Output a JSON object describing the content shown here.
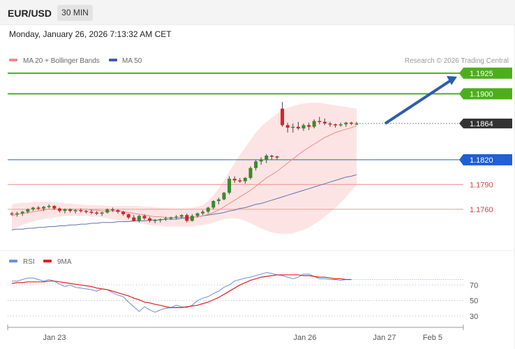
{
  "header": {
    "symbol": "EUR/USD",
    "timeframe": "30 MIN"
  },
  "datetime": "Monday, January 26, 2026 7:13:32 AM CET",
  "legend": {
    "ma20": "MA 20 + Bollinger Bands",
    "ma50": "MA 50",
    "ma20_color": "#f08a8a",
    "ma50_color": "#3a5fa8"
  },
  "credit": "Research © 2026 Trading Central",
  "rsi_legend": {
    "rsi": "RSI",
    "ma9": "9MA",
    "rsi_color": "#6a8fe0",
    "ma9_color": "#e02020"
  },
  "chart_data": [
    {
      "type": "candlestick",
      "ylim": [
        1.1715,
        1.1935
      ],
      "levels": [
        {
          "value": 1.1925,
          "label": "1.1925",
          "kind": "target",
          "color": "#4caf1a"
        },
        {
          "value": 1.19,
          "label": "1.1900",
          "kind": "target",
          "color": "#4caf1a"
        },
        {
          "value": 1.1864,
          "label": "1.1864",
          "kind": "current",
          "color": "#333333"
        },
        {
          "value": 1.182,
          "label": "1.1820",
          "kind": "pivot",
          "color": "#1f5fd8"
        },
        {
          "value": 1.179,
          "label": "1.1790",
          "kind": "support",
          "color": "#d94040"
        },
        {
          "value": 1.176,
          "label": "1.1760",
          "kind": "support",
          "color": "#d94040"
        }
      ],
      "candles": [
        [
          1.1755,
          1.1757,
          1.1752,
          1.1754
        ],
        [
          1.1754,
          1.1757,
          1.1751,
          1.1755
        ],
        [
          1.1755,
          1.1758,
          1.1752,
          1.1757
        ],
        [
          1.1757,
          1.1761,
          1.1755,
          1.176
        ],
        [
          1.176,
          1.1763,
          1.1758,
          1.1762
        ],
        [
          1.1762,
          1.1764,
          1.1759,
          1.1761
        ],
        [
          1.1761,
          1.1764,
          1.1758,
          1.1763
        ],
        [
          1.1763,
          1.1766,
          1.1761,
          1.1764
        ],
        [
          1.1764,
          1.1765,
          1.1759,
          1.1761
        ],
        [
          1.1761,
          1.1762,
          1.1756,
          1.1758
        ],
        [
          1.1758,
          1.1761,
          1.1755,
          1.176
        ],
        [
          1.176,
          1.1761,
          1.1756,
          1.1758
        ],
        [
          1.1758,
          1.176,
          1.1755,
          1.1759
        ],
        [
          1.1759,
          1.1761,
          1.1756,
          1.1758
        ],
        [
          1.1758,
          1.1759,
          1.1755,
          1.1757
        ],
        [
          1.1757,
          1.176,
          1.1754,
          1.1756
        ],
        [
          1.1756,
          1.1758,
          1.1753,
          1.1755
        ],
        [
          1.1755,
          1.1757,
          1.1752,
          1.1756
        ],
        [
          1.1756,
          1.1761,
          1.1755,
          1.176
        ],
        [
          1.176,
          1.1762,
          1.1757,
          1.1759
        ],
        [
          1.1759,
          1.176,
          1.1755,
          1.1757
        ],
        [
          1.1757,
          1.1758,
          1.1752,
          1.1754
        ],
        [
          1.1754,
          1.1755,
          1.1748,
          1.175
        ],
        [
          1.175,
          1.1753,
          1.1745,
          1.1746
        ],
        [
          1.1746,
          1.1753,
          1.1744,
          1.1752
        ],
        [
          1.1752,
          1.1754,
          1.1747,
          1.1749
        ],
        [
          1.1749,
          1.1751,
          1.1744,
          1.1746
        ],
        [
          1.1746,
          1.1748,
          1.1743,
          1.1747
        ],
        [
          1.1747,
          1.1749,
          1.1744,
          1.1748
        ],
        [
          1.1748,
          1.1751,
          1.1746,
          1.1749
        ],
        [
          1.1749,
          1.1751,
          1.1747,
          1.175
        ],
        [
          1.175,
          1.1753,
          1.1748,
          1.1751
        ],
        [
          1.1751,
          1.1754,
          1.1749,
          1.1753
        ],
        [
          1.1753,
          1.1755,
          1.1744,
          1.1746
        ],
        [
          1.1746,
          1.1754,
          1.1745,
          1.1752
        ],
        [
          1.1752,
          1.1756,
          1.175,
          1.1755
        ],
        [
          1.1755,
          1.1759,
          1.1753,
          1.1757
        ],
        [
          1.1757,
          1.1763,
          1.1755,
          1.1762
        ],
        [
          1.1762,
          1.1771,
          1.176,
          1.177
        ],
        [
          1.177,
          1.1774,
          1.1766,
          1.1772
        ],
        [
          1.1772,
          1.1781,
          1.1771,
          1.178
        ],
        [
          1.178,
          1.18,
          1.1778,
          1.1797
        ],
        [
          1.1797,
          1.18,
          1.1792,
          1.1795
        ],
        [
          1.1795,
          1.1798,
          1.1792,
          1.1794
        ],
        [
          1.1794,
          1.1799,
          1.1791,
          1.1798
        ],
        [
          1.1798,
          1.1812,
          1.1796,
          1.181
        ],
        [
          1.181,
          1.182,
          1.1807,
          1.1818
        ],
        [
          1.1818,
          1.1823,
          1.1814,
          1.182
        ],
        [
          1.182,
          1.1827,
          1.1816,
          1.1825
        ],
        [
          1.1825,
          1.1826,
          1.182,
          1.1824
        ],
        [
          1.1824,
          1.1825,
          1.182,
          1.1823
        ],
        [
          1.1882,
          1.189,
          1.186,
          1.1862
        ],
        [
          1.1862,
          1.1865,
          1.1853,
          1.1859
        ],
        [
          1.1859,
          1.1864,
          1.1853,
          1.186
        ],
        [
          1.186,
          1.1866,
          1.1856,
          1.1858
        ],
        [
          1.1858,
          1.1864,
          1.1855,
          1.1862
        ],
        [
          1.1862,
          1.1865,
          1.1856,
          1.186
        ],
        [
          1.186,
          1.1869,
          1.1858,
          1.1867
        ],
        [
          1.1867,
          1.1872,
          1.1863,
          1.1866
        ],
        [
          1.1866,
          1.187,
          1.1862,
          1.1864
        ],
        [
          1.1864,
          1.1866,
          1.186,
          1.1863
        ],
        [
          1.1863,
          1.1864,
          1.1859,
          1.1862
        ],
        [
          1.1862,
          1.1865,
          1.186,
          1.1863
        ],
        [
          1.1863,
          1.1866,
          1.186,
          1.1865
        ],
        [
          1.1865,
          1.1866,
          1.1862,
          1.1864
        ],
        [
          1.1864,
          1.1866,
          1.1862,
          1.1864
        ]
      ],
      "ma20": [
        1.1752,
        1.1754,
        1.1755,
        1.1756,
        1.1757,
        1.1758,
        1.1759,
        1.176,
        1.176,
        1.176,
        1.176,
        1.176,
        1.176,
        1.176,
        1.176,
        1.1759,
        1.1759,
        1.1758,
        1.1758,
        1.1758,
        1.1758,
        1.1757,
        1.1756,
        1.1755,
        1.1754,
        1.1753,
        1.1752,
        1.1751,
        1.1751,
        1.175,
        1.175,
        1.175,
        1.175,
        1.175,
        1.175,
        1.1751,
        1.1752,
        1.1754,
        1.1756,
        1.1759,
        1.1763,
        1.1767,
        1.1771,
        1.1775,
        1.1779,
        1.1783,
        1.1788,
        1.1793,
        1.1798,
        1.1802,
        1.1806,
        1.1811,
        1.1816,
        1.1821,
        1.1826,
        1.1831,
        1.1835,
        1.1839,
        1.1843,
        1.1847,
        1.185,
        1.1853,
        1.1855,
        1.1857,
        1.1859,
        1.1861
      ],
      "bb_upper": [
        1.1766,
        1.1767,
        1.1768,
        1.1768,
        1.1769,
        1.1769,
        1.1769,
        1.1769,
        1.1768,
        1.1768,
        1.1767,
        1.1767,
        1.1766,
        1.1766,
        1.1765,
        1.1765,
        1.1765,
        1.1765,
        1.1764,
        1.1764,
        1.1764,
        1.1764,
        1.1764,
        1.1764,
        1.1764,
        1.1763,
        1.1763,
        1.1762,
        1.1762,
        1.1762,
        1.1761,
        1.1761,
        1.1761,
        1.1761,
        1.1762,
        1.1763,
        1.1765,
        1.177,
        1.1777,
        1.1785,
        1.1795,
        1.1806,
        1.1816,
        1.1826,
        1.1835,
        1.1844,
        1.1853,
        1.186,
        1.1866,
        1.1871,
        1.1876,
        1.188,
        1.1883,
        1.1885,
        1.1887,
        1.1888,
        1.1889,
        1.1889,
        1.1889,
        1.1888,
        1.1887,
        1.1886,
        1.1885,
        1.1884,
        1.1883,
        1.1882
      ],
      "bb_lower": [
        1.1734,
        1.1738,
        1.1741,
        1.1743,
        1.1745,
        1.1747,
        1.1748,
        1.1749,
        1.175,
        1.1751,
        1.1752,
        1.1752,
        1.1752,
        1.1752,
        1.1752,
        1.1751,
        1.1751,
        1.175,
        1.1749,
        1.1748,
        1.1747,
        1.1746,
        1.1745,
        1.1744,
        1.1743,
        1.1742,
        1.1741,
        1.174,
        1.174,
        1.1739,
        1.1739,
        1.1739,
        1.1739,
        1.1739,
        1.1739,
        1.174,
        1.1741,
        1.1742,
        1.1744,
        1.1746,
        1.1748,
        1.1749,
        1.1749,
        1.1748,
        1.1746,
        1.1743,
        1.174,
        1.1737,
        1.1734,
        1.1732,
        1.1731,
        1.173,
        1.173,
        1.1731,
        1.1733,
        1.1735,
        1.1738,
        1.1742,
        1.1746,
        1.1751,
        1.1756,
        1.1762,
        1.1768,
        1.1775,
        1.1782,
        1.179
      ],
      "ma50": [
        1.1735,
        1.1736,
        1.1736,
        1.1737,
        1.1737,
        1.1738,
        1.1738,
        1.1739,
        1.1739,
        1.174,
        1.174,
        1.1741,
        1.1741,
        1.1742,
        1.1742,
        1.1743,
        1.1743,
        1.1744,
        1.1744,
        1.1744,
        1.1745,
        1.1745,
        1.1745,
        1.1746,
        1.1746,
        1.1746,
        1.1747,
        1.1747,
        1.1747,
        1.1748,
        1.1748,
        1.1748,
        1.1749,
        1.1749,
        1.175,
        1.1751,
        1.1752,
        1.1753,
        1.1754,
        1.1755,
        1.1756,
        1.1758,
        1.1759,
        1.1761,
        1.1762,
        1.1764,
        1.1766,
        1.1767,
        1.1769,
        1.1771,
        1.1773,
        1.1775,
        1.1777,
        1.1779,
        1.1781,
        1.1783,
        1.1785,
        1.1787,
        1.1789,
        1.1791,
        1.1793,
        1.1795,
        1.1797,
        1.1799,
        1.18,
        1.1802
      ],
      "arrow": {
        "from": 1.1864,
        "to": 1.1925
      },
      "xticks": [
        "Jan 23",
        "Jan 26",
        "Jan 27",
        "Feb 5"
      ]
    },
    {
      "type": "line",
      "name_rsi": "RSI",
      "name_ma": "9MA",
      "ylim": [
        20,
        90
      ],
      "yticks": [
        "70",
        "50",
        "30"
      ],
      "ytick_values": [
        70,
        50,
        30
      ],
      "rsi": [
        75,
        75,
        77,
        79,
        79,
        77,
        75,
        77,
        75,
        71,
        68,
        70,
        67,
        66,
        65,
        64,
        62,
        65,
        64,
        60,
        57,
        55,
        48,
        42,
        36,
        42,
        38,
        35,
        38,
        40,
        41,
        44,
        42,
        41,
        44,
        50,
        53,
        55,
        59,
        62,
        67,
        70,
        75,
        77,
        79,
        80,
        82,
        84,
        86,
        85,
        83,
        82,
        80,
        78,
        80,
        84,
        84,
        81,
        78,
        78,
        77,
        77,
        76,
        77,
        77
      ],
      "ma9": [
        72,
        73,
        73,
        74,
        74,
        74,
        74,
        75,
        75,
        74,
        73,
        72,
        71,
        70,
        69,
        68,
        66,
        65,
        64,
        62,
        60,
        58,
        56,
        53,
        51,
        48,
        47,
        45,
        44,
        42,
        41,
        41,
        41,
        42,
        43,
        44,
        46,
        48,
        51,
        54,
        58,
        62,
        66,
        70,
        73,
        76,
        78,
        80,
        81,
        82,
        83,
        83,
        83,
        83,
        83,
        82,
        82,
        81,
        80,
        80,
        79,
        78,
        78,
        77,
        77
      ]
    }
  ]
}
